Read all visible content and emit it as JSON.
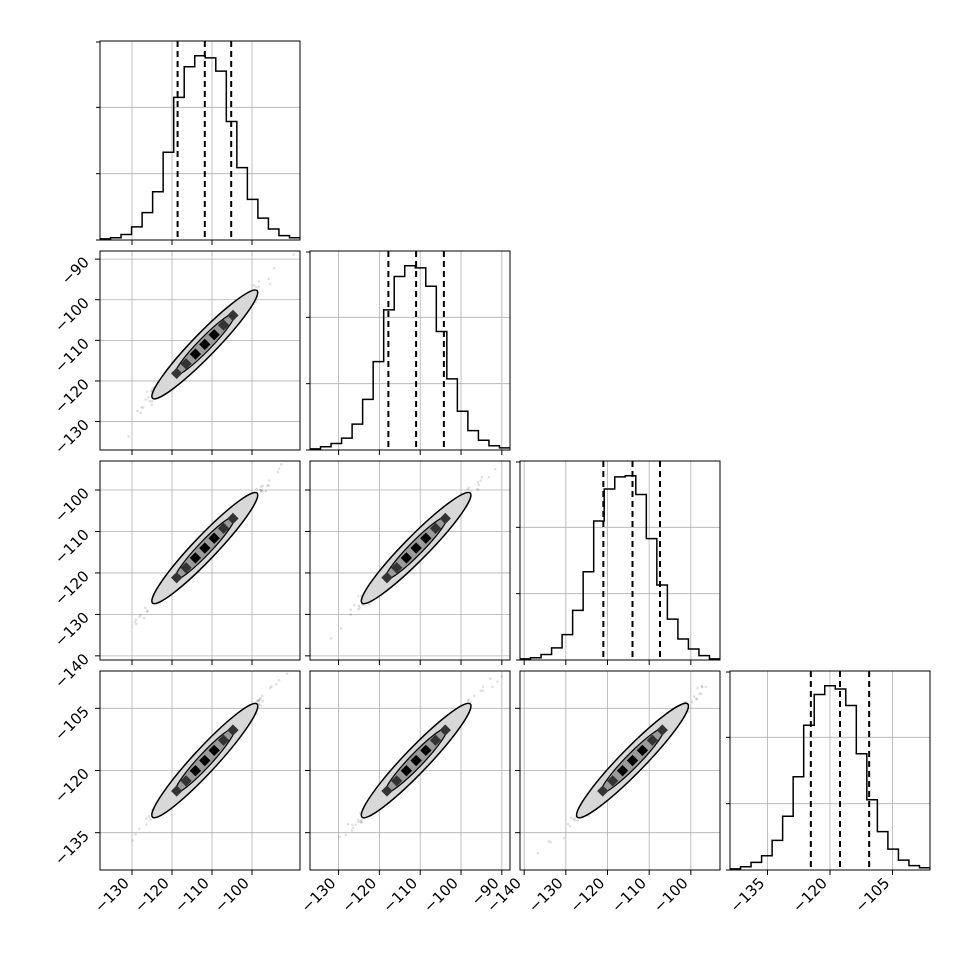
{
  "colors": {
    "frame": "#000000",
    "grid": "#b0b0b0",
    "hist": "#000000",
    "contour_fill_light": "#d8d8d8",
    "contour_fill_dark": "#000000"
  },
  "chart_data": {
    "type": "corner",
    "params": 4,
    "grid": true,
    "axes": [
      {
        "range": [
          -138,
          -88
        ],
        "ticks": [
          -130,
          -120,
          -110,
          -100
        ],
        "tick_labels": [
          "−130",
          "−120",
          "−110",
          "−100"
        ]
      },
      {
        "range": [
          -137,
          -88
        ],
        "ticks": [
          -130,
          -120,
          -110,
          -100,
          -90
        ],
        "tick_labels": [
          "−130",
          "−120",
          "−110",
          "−100",
          "−90"
        ]
      },
      {
        "range": [
          -141,
          -93
        ],
        "ticks": [
          -140,
          -130,
          -120,
          -110,
          -100
        ],
        "tick_labels": [
          "−140",
          "−130",
          "−120",
          "−110",
          "−100"
        ]
      },
      {
        "range": [
          -144,
          -96
        ],
        "ticks": [
          -135,
          -120,
          -105
        ],
        "tick_labels": [
          "−135",
          "−120",
          "−105"
        ]
      }
    ],
    "quantiles": [
      [
        -118.6,
        -111.8,
        -105.2
      ],
      [
        -117.8,
        -111.0,
        -104.2
      ],
      [
        -121.0,
        -114.0,
        -107.4
      ],
      [
        -124.6,
        -117.6,
        -110.6
      ]
    ],
    "histograms": [
      {
        "counts": [
          1,
          2,
          5,
          12,
          25,
          44,
          80,
          130,
          158,
          168,
          166,
          154,
          108,
          66,
          37,
          20,
          10,
          4,
          2
        ]
      },
      {
        "counts": [
          1,
          3,
          6,
          11,
          24,
          47,
          82,
          130,
          161,
          171,
          169,
          152,
          110,
          66,
          36,
          18,
          9,
          4,
          2
        ]
      },
      {
        "counts": [
          1,
          2,
          5,
          11,
          23,
          45,
          80,
          126,
          155,
          166,
          167,
          150,
          110,
          68,
          37,
          19,
          10,
          4,
          1
        ]
      },
      {
        "counts": [
          1,
          3,
          7,
          13,
          27,
          49,
          85,
          132,
          160,
          168,
          165,
          150,
          106,
          64,
          35,
          19,
          9,
          4,
          2
        ]
      }
    ],
    "correlation": 0.99
  }
}
